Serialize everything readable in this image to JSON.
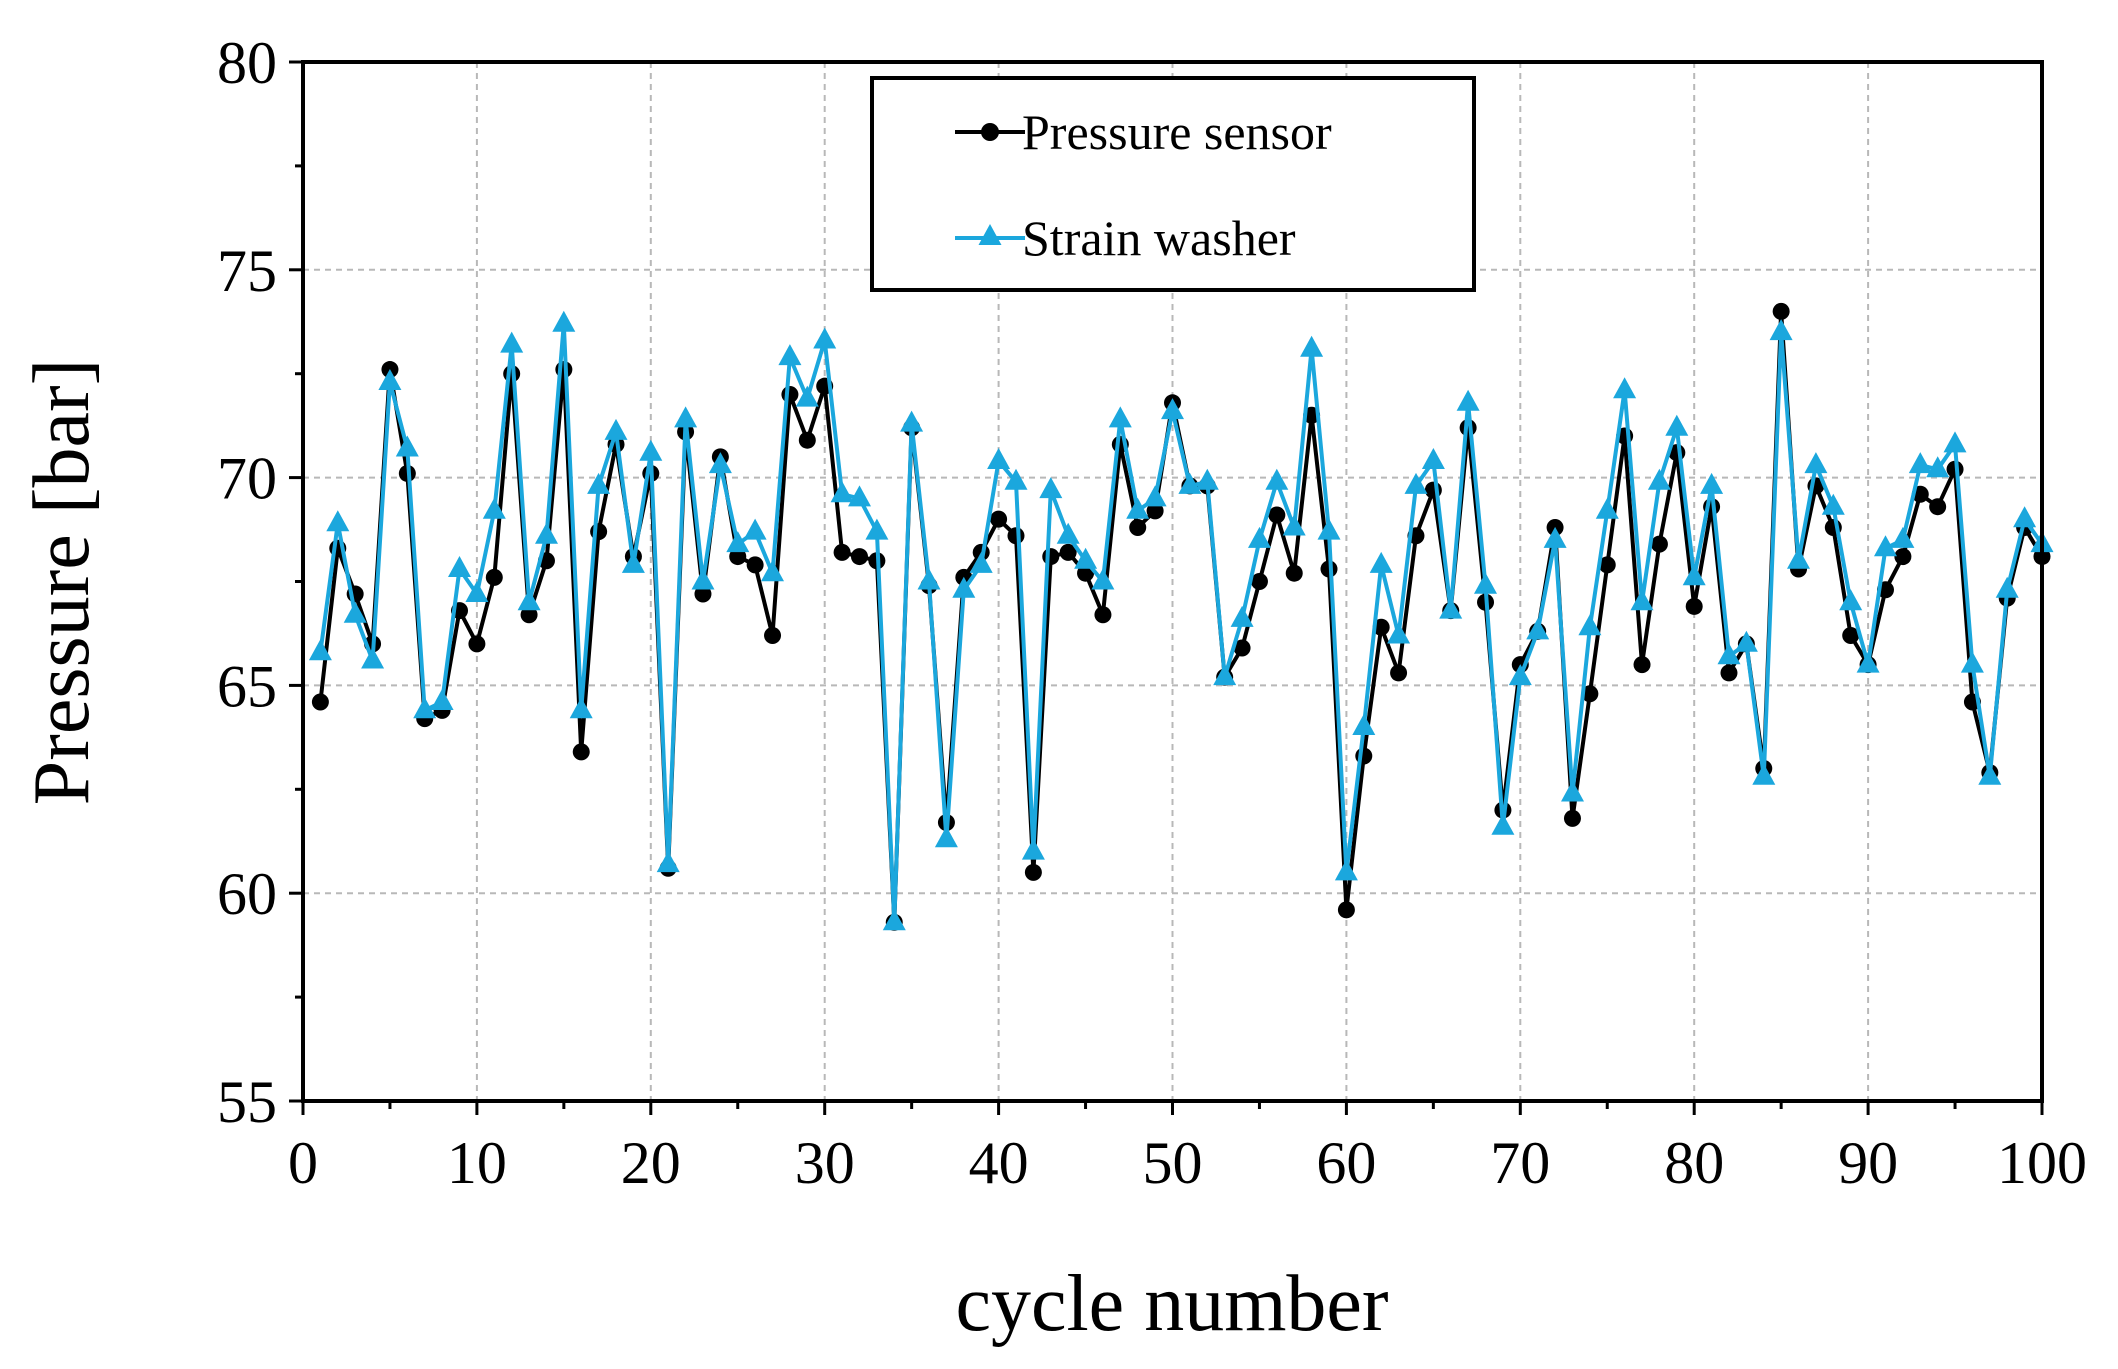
{
  "chart_data": {
    "type": "line",
    "title": "",
    "xlabel": "cycle number",
    "ylabel": "Pressure [bar]",
    "xlim": [
      0,
      100
    ],
    "ylim": [
      55,
      80
    ],
    "xticks": [
      0,
      10,
      20,
      30,
      40,
      50,
      60,
      70,
      80,
      90,
      100
    ],
    "yticks": [
      55,
      60,
      65,
      70,
      75,
      80
    ],
    "xtick_labels": [
      "0",
      "10",
      "20",
      "30",
      "40",
      "50",
      "60",
      "70",
      "80",
      "90",
      "100"
    ],
    "ytick_labels": [
      "55",
      "60",
      "65",
      "70",
      "75",
      "80"
    ],
    "grid": true,
    "legend_position": "top-center",
    "x": [
      1,
      2,
      3,
      4,
      5,
      6,
      7,
      8,
      9,
      10,
      11,
      12,
      13,
      14,
      15,
      16,
      17,
      18,
      19,
      20,
      21,
      22,
      23,
      24,
      25,
      26,
      27,
      28,
      29,
      30,
      31,
      32,
      33,
      34,
      35,
      36,
      37,
      38,
      39,
      40,
      41,
      42,
      43,
      44,
      45,
      46,
      47,
      48,
      49,
      50,
      51,
      52,
      53,
      54,
      55,
      56,
      57,
      58,
      59,
      60,
      61,
      62,
      63,
      64,
      65,
      66,
      67,
      68,
      69,
      70,
      71,
      72,
      73,
      74,
      75,
      76,
      77,
      78,
      79,
      80,
      81,
      82,
      83,
      84,
      85,
      86,
      87,
      88,
      89,
      90,
      91,
      92,
      93,
      94,
      95,
      96,
      97,
      98,
      99,
      100
    ],
    "series": [
      {
        "name": "Pressure sensor",
        "color": "#000000",
        "marker": "circle",
        "values": [
          64.6,
          68.3,
          67.2,
          66.0,
          72.6,
          70.1,
          64.2,
          64.4,
          66.8,
          66.0,
          67.6,
          72.5,
          66.7,
          68.0,
          72.6,
          63.4,
          68.7,
          70.8,
          68.1,
          70.1,
          60.6,
          71.1,
          67.2,
          70.5,
          68.1,
          67.9,
          66.2,
          72.0,
          70.9,
          72.2,
          68.2,
          68.1,
          68.0,
          59.3,
          71.2,
          67.4,
          61.7,
          67.6,
          68.2,
          69.0,
          68.6,
          60.5,
          68.1,
          68.2,
          67.7,
          66.7,
          70.8,
          68.8,
          69.2,
          71.8,
          69.8,
          69.8,
          65.2,
          65.9,
          67.5,
          69.1,
          67.7,
          71.5,
          67.8,
          59.6,
          63.3,
          66.4,
          65.3,
          68.6,
          69.7,
          66.8,
          71.2,
          67.0,
          62.0,
          65.5,
          66.3,
          68.8,
          61.8,
          64.8,
          67.9,
          71.0,
          65.5,
          68.4,
          70.6,
          66.9,
          69.3,
          65.3,
          66.0,
          63.0,
          74.0,
          67.8,
          69.8,
          68.8,
          66.2,
          65.5,
          67.3,
          68.1,
          69.6,
          69.3,
          70.2,
          64.6,
          62.9,
          67.1,
          68.8,
          68.1
        ]
      },
      {
        "name": "Strain washer",
        "color": "#1ba7dd",
        "marker": "triangle",
        "values": [
          65.8,
          68.9,
          66.7,
          65.6,
          72.3,
          70.7,
          64.4,
          64.6,
          67.8,
          67.2,
          69.2,
          73.2,
          67.0,
          68.6,
          73.7,
          64.4,
          69.8,
          71.1,
          67.9,
          70.6,
          60.7,
          71.4,
          67.5,
          70.3,
          68.4,
          68.7,
          67.7,
          72.9,
          71.9,
          73.3,
          69.6,
          69.5,
          68.7,
          59.3,
          71.3,
          67.5,
          61.3,
          67.3,
          67.9,
          70.4,
          69.9,
          61.0,
          69.7,
          68.6,
          68.0,
          67.5,
          71.4,
          69.2,
          69.5,
          71.6,
          69.8,
          69.9,
          65.2,
          66.6,
          68.5,
          69.9,
          68.8,
          73.1,
          68.7,
          60.5,
          64.0,
          67.9,
          66.2,
          69.8,
          70.4,
          66.8,
          71.8,
          67.4,
          61.6,
          65.2,
          66.3,
          68.5,
          62.4,
          66.4,
          69.2,
          72.1,
          67.0,
          69.9,
          71.2,
          67.6,
          69.8,
          65.7,
          66.0,
          62.8,
          73.5,
          68.0,
          70.3,
          69.3,
          67.0,
          65.5,
          68.3,
          68.5,
          70.3,
          70.2,
          70.8,
          65.5,
          62.8,
          67.3,
          69.0,
          68.4
        ]
      }
    ]
  }
}
